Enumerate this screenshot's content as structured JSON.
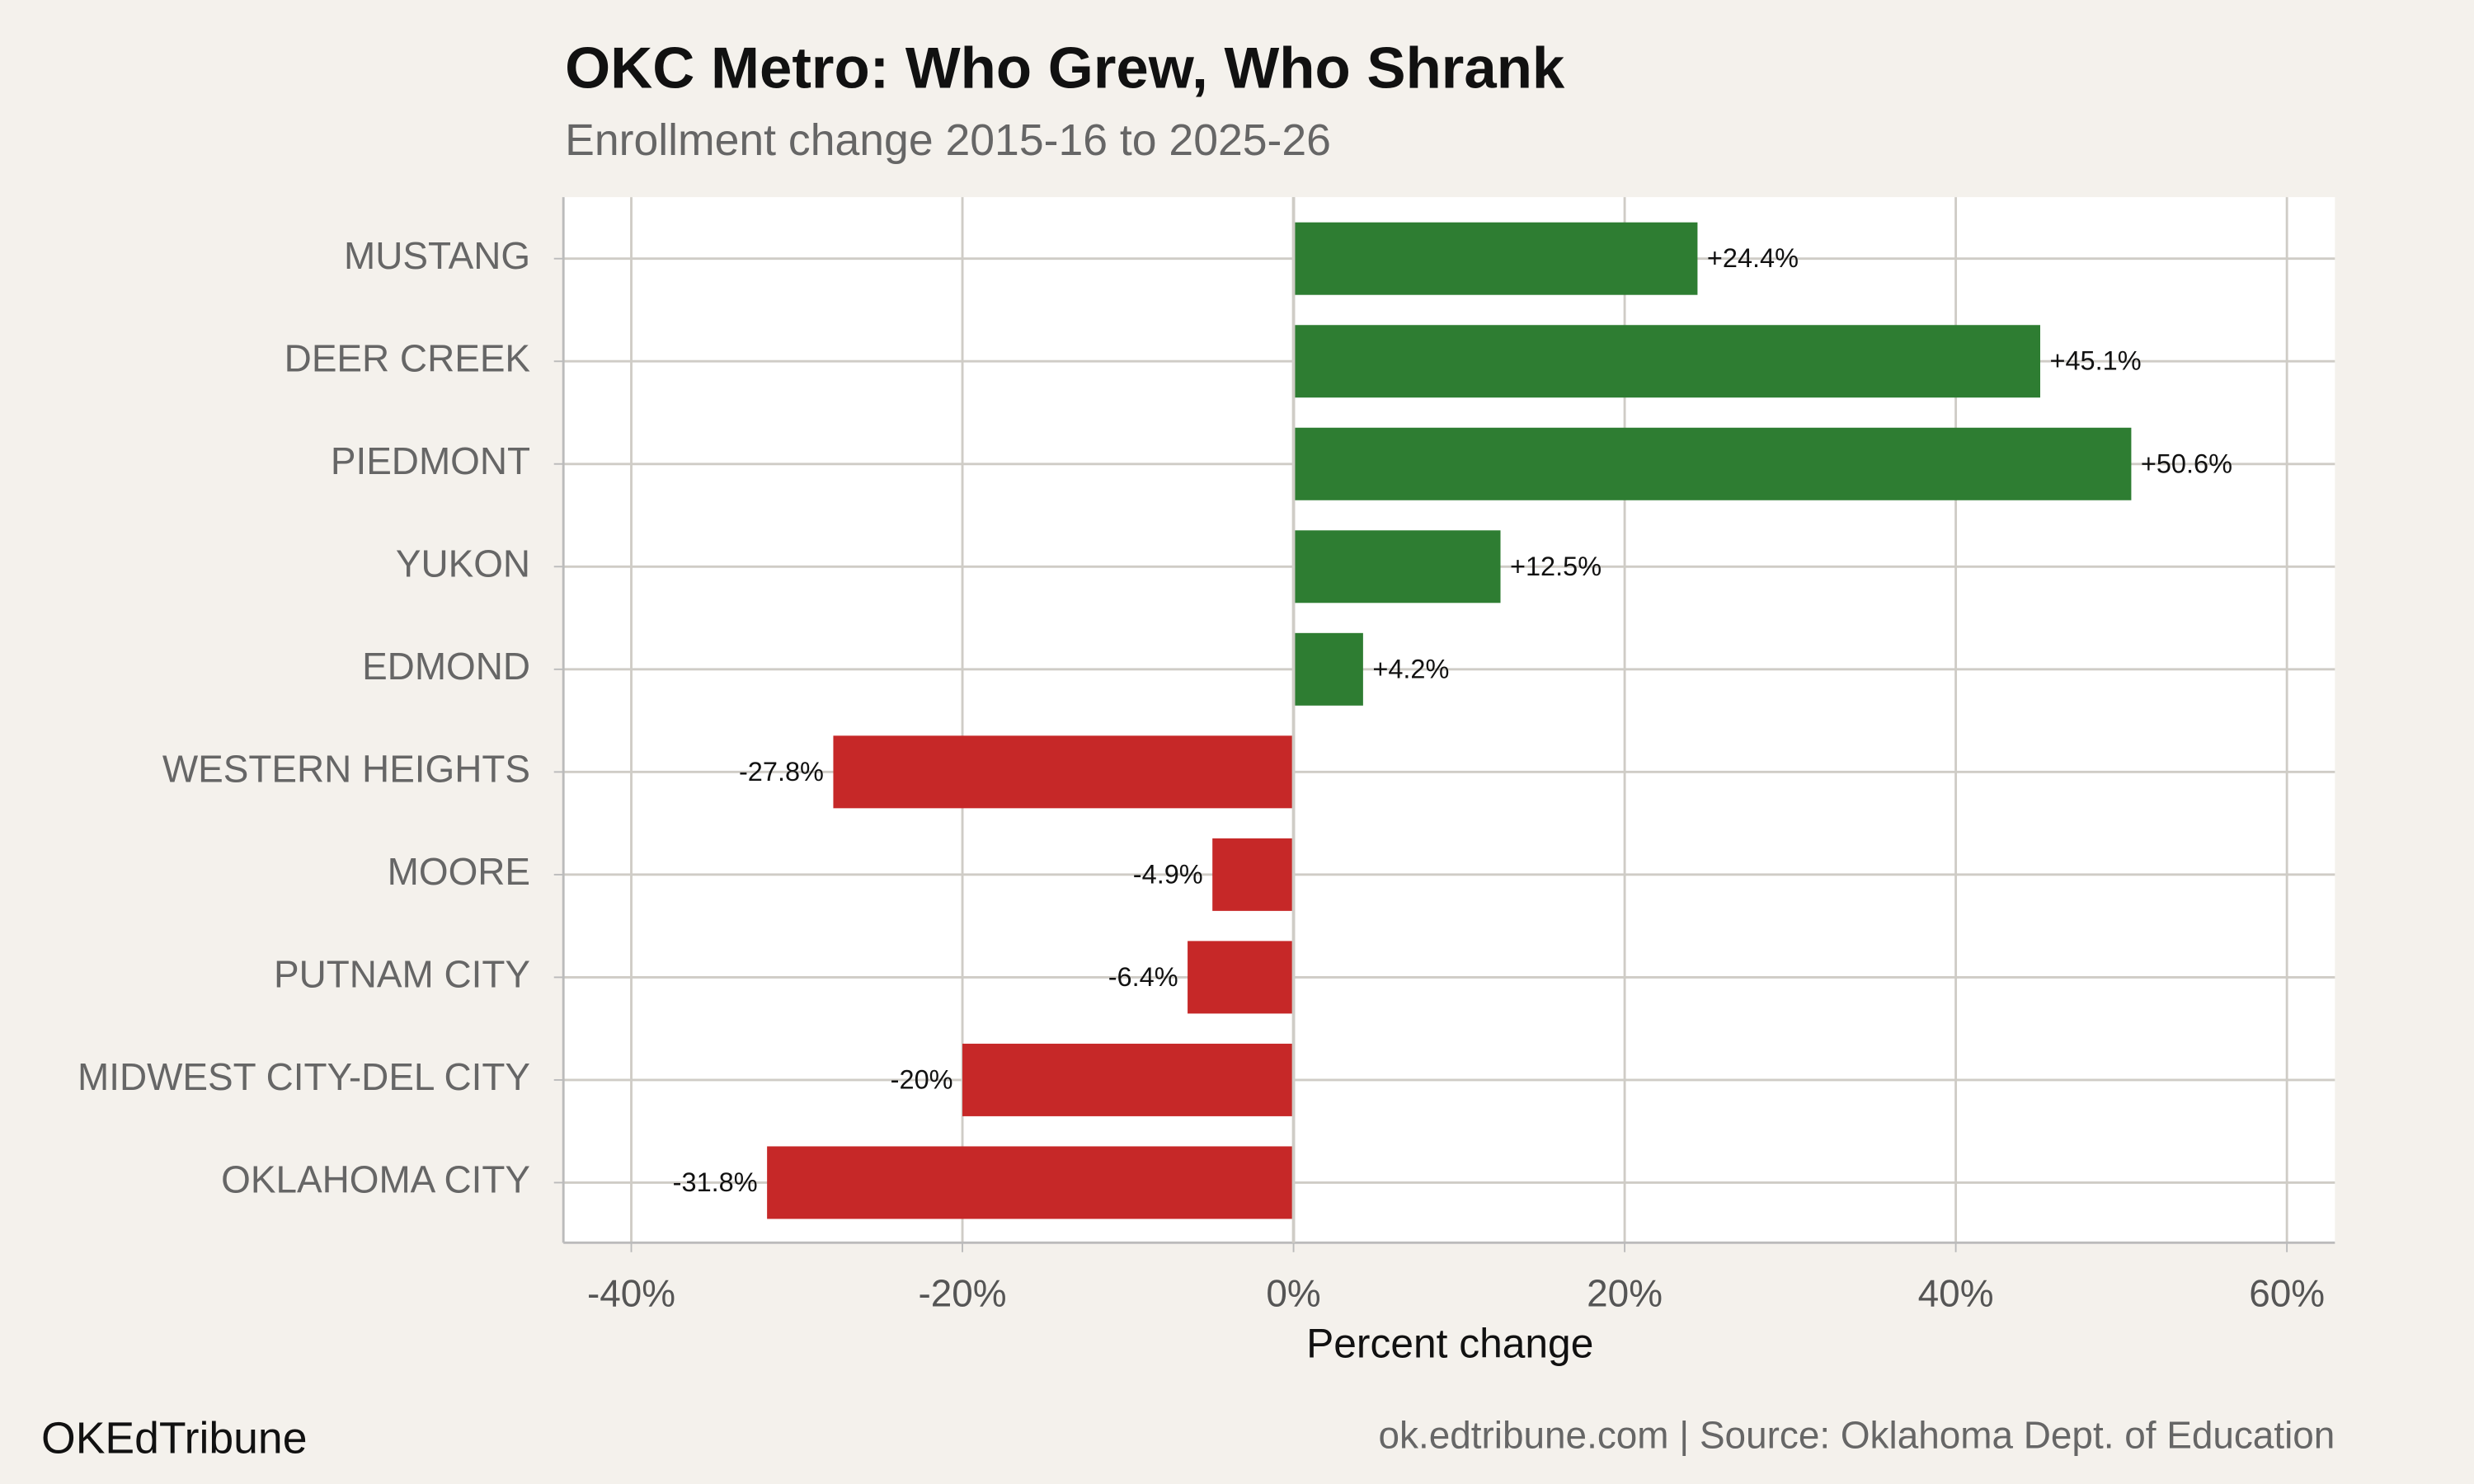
{
  "chart_data": {
    "type": "hbar",
    "title": "OKC Metro: Who Grew, Who Shrank",
    "subtitle": "Enrollment change 2015-16 to 2025-26",
    "x_label": "Percent change",
    "categories": [
      "MUSTANG",
      "DEER CREEK",
      "PIEDMONT",
      "YUKON",
      "EDMOND",
      "WESTERN HEIGHTS",
      "MOORE",
      "PUTNAM CITY",
      "MIDWEST CITY-DEL CITY",
      "OKLAHOMA CITY"
    ],
    "values": [
      24.4,
      45.1,
      50.6,
      12.5,
      4.2,
      -27.8,
      -4.9,
      -6.4,
      -20,
      -31.8
    ],
    "value_labels": [
      "+24.4%",
      "+45.1%",
      "+50.6%",
      "+12.5%",
      "+4.2%",
      "-27.8%",
      "-4.9%",
      "-6.4%",
      "-20%",
      "-31.8%"
    ],
    "color_positive": "#2e7d32",
    "color_negative": "#c62828",
    "xlim": [
      -44.1,
      62.9
    ],
    "xticks": [
      {
        "value": -40,
        "label": "-40%"
      },
      {
        "value": -20,
        "label": "-20%"
      },
      {
        "value": 0,
        "label": "0%"
      },
      {
        "value": 20,
        "label": "20%"
      },
      {
        "value": 40,
        "label": "40%"
      },
      {
        "value": 60,
        "label": "60%"
      }
    ],
    "grid": true,
    "brand": "OKEdTribune",
    "source": "ok.edtribune.com | Source: Oklahoma Dept. of Education"
  }
}
